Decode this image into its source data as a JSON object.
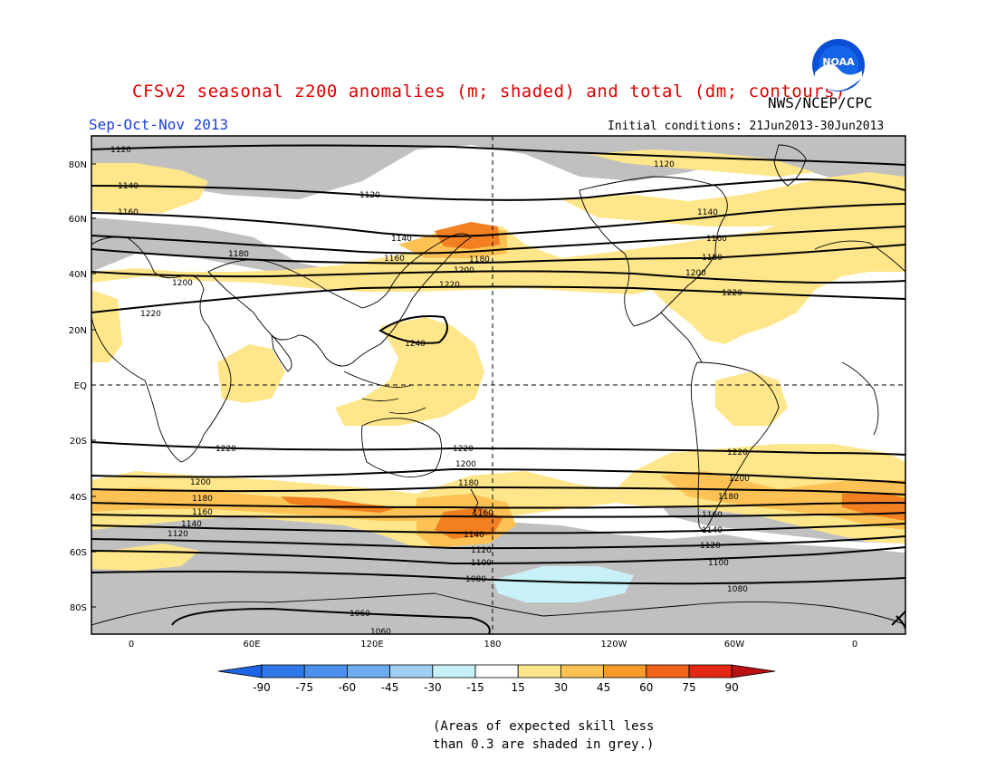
{
  "header": {
    "title": "CFSv2 seasonal z200 anomalies (m; shaded) and total (dm; contours)",
    "agency": "NWS/NCEP/CPC",
    "season": "Sep-Oct-Nov 2013",
    "initial_conditions": "Initial conditions: 21Jun2013-30Jun2013",
    "logo_text": "NOAA"
  },
  "map": {
    "lat_labels": [
      "80N",
      "60N",
      "40N",
      "20N",
      "EQ",
      "20S",
      "40S",
      "60S",
      "80S"
    ],
    "lon_labels": [
      "0",
      "60E",
      "120E",
      "180",
      "120W",
      "60W",
      "0"
    ],
    "contour_labels": [
      "1120",
      "1140",
      "1160",
      "1180",
      "1200",
      "1220",
      "1240",
      "1220",
      "1200",
      "1180",
      "1160",
      "1140",
      "1120",
      "1100",
      "1080",
      "1060",
      "1060",
      "1120",
      "1140",
      "1160",
      "1180",
      "1200",
      "1220",
      "1120",
      "1140",
      "1160",
      "1180",
      "1200",
      "1220",
      "1200",
      "1180",
      "1160",
      "1140",
      "1120",
      "1100",
      "1080"
    ],
    "shading_legend": "anomaly colors: grey = low skill"
  },
  "colorbar": {
    "labels": [
      "-90",
      "-75",
      "-60",
      "-45",
      "-30",
      "-15",
      "15",
      "30",
      "45",
      "60",
      "75",
      "90"
    ],
    "colors": [
      "#1e64e6",
      "#2f78ea",
      "#4a90ec",
      "#6eacf0",
      "#9fd0f5",
      "#c8f0f8",
      "#ffffff",
      "#ffe68a",
      "#fdc253",
      "#f99a2b",
      "#f2621c",
      "#e52814",
      "#bb1010"
    ]
  },
  "note": {
    "line1": "(Areas of expected skill less",
    "line2": "than 0.3 are shaded in grey.)"
  }
}
